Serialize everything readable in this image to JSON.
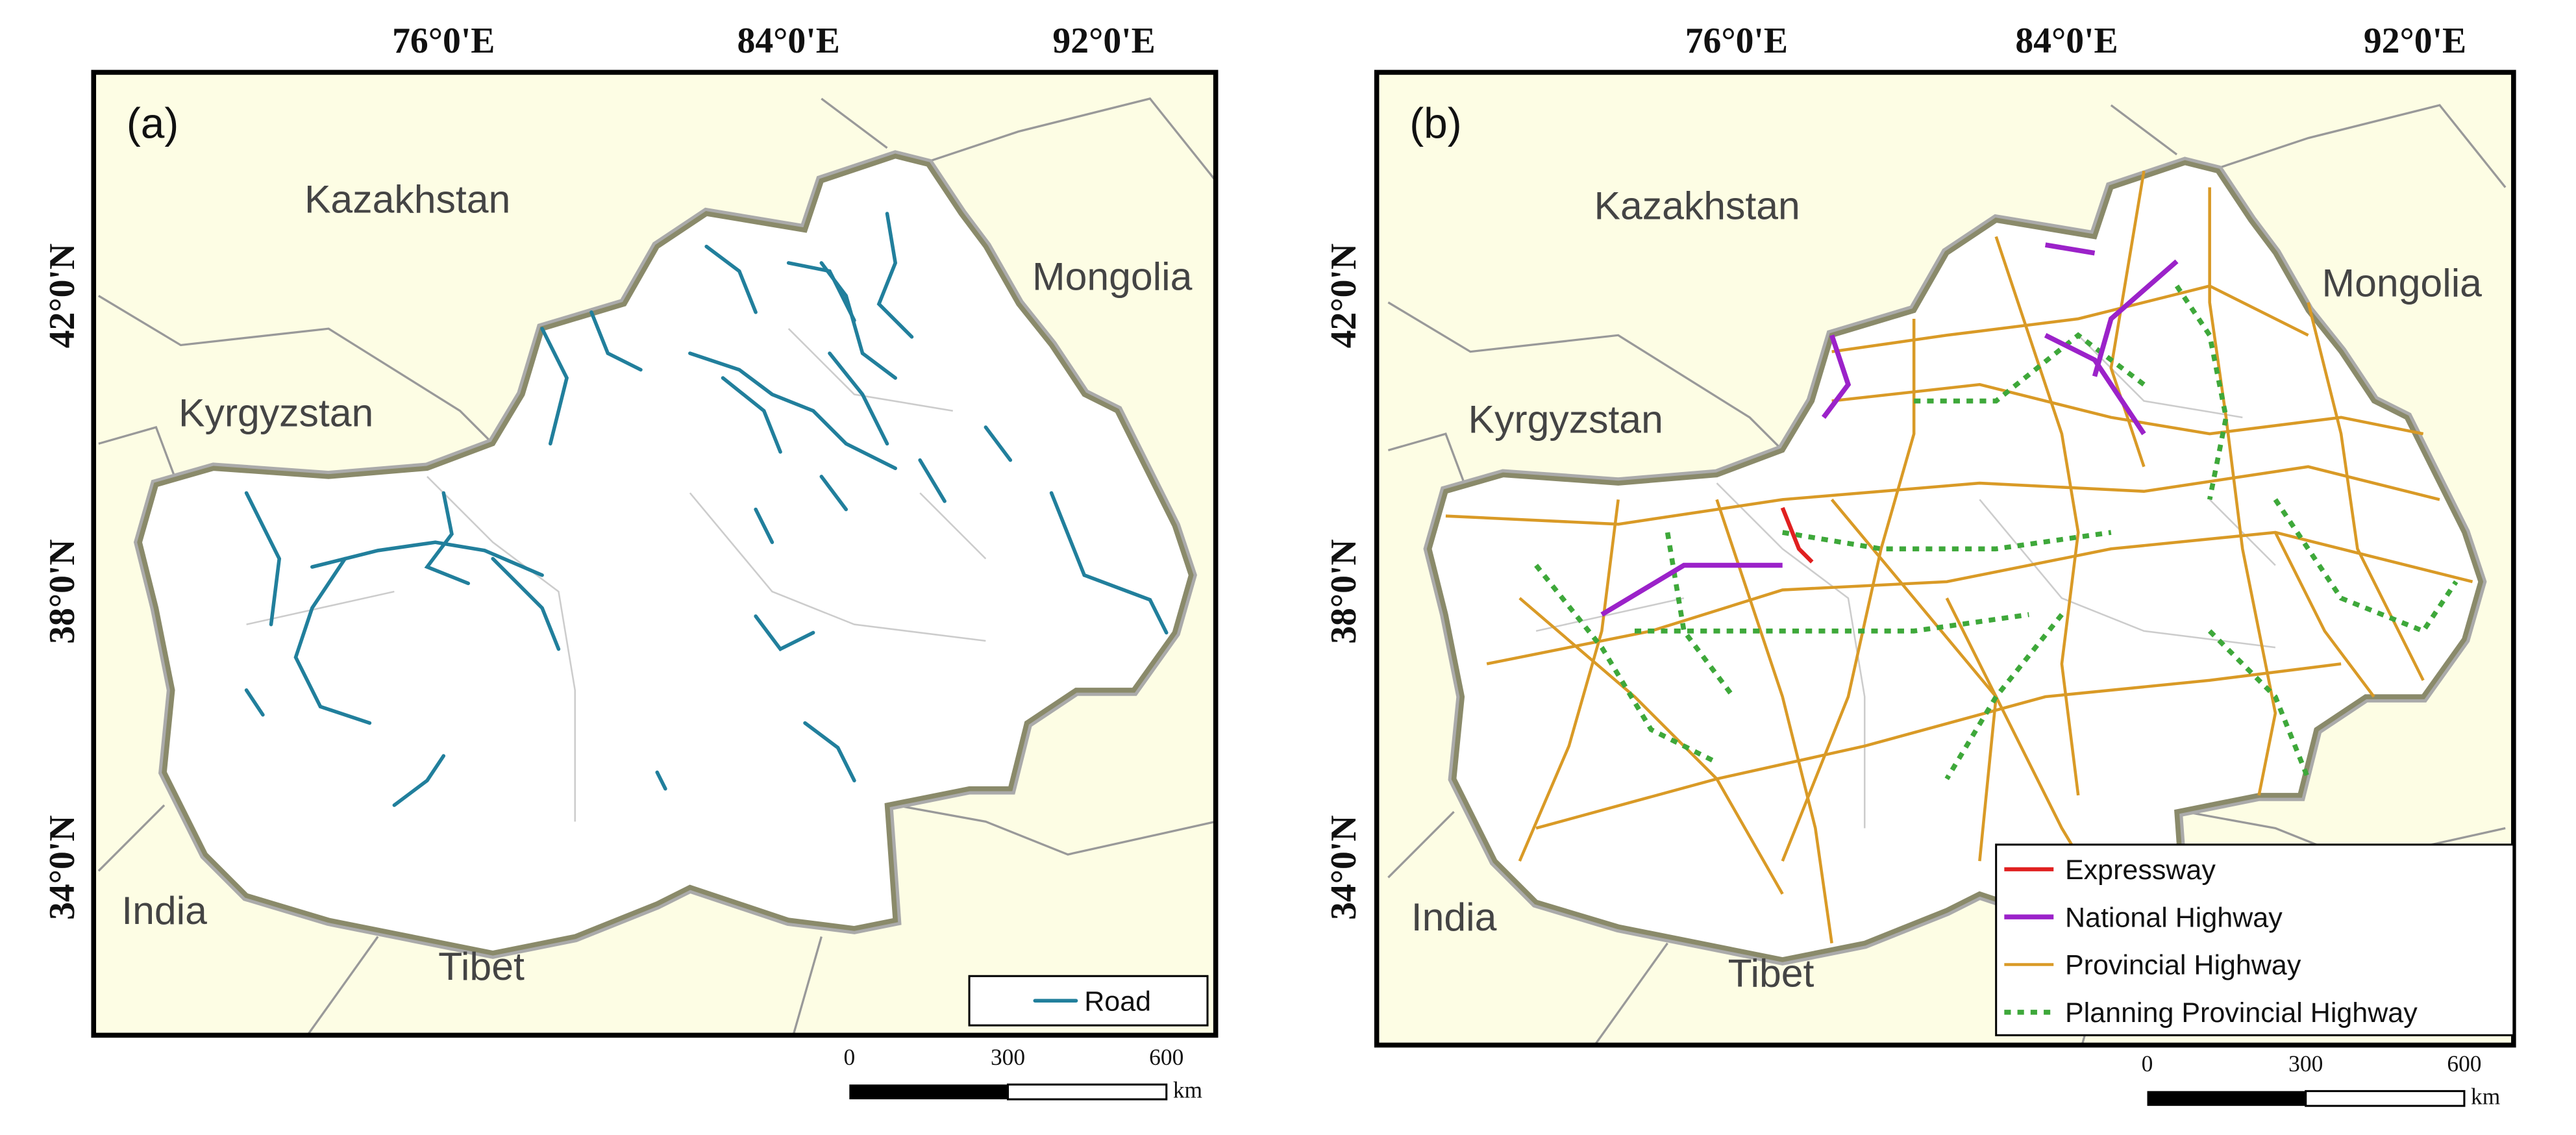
{
  "panels": [
    {
      "label": "(a)",
      "top_ticks": [
        "76°0'E",
        "84°0'E",
        "92°0'E"
      ],
      "left_ticks": [
        "42°0'N",
        "38°0'N",
        "34°0'N"
      ],
      "regions": [
        "Kazakhstan",
        "Mongolia",
        "Kyrgyzstan",
        "India",
        "Tibet"
      ],
      "legend": [
        "Road"
      ],
      "scale": {
        "ticks": [
          "0",
          "300",
          "600"
        ],
        "unit": "km"
      }
    },
    {
      "label": "(b)",
      "top_ticks": [
        "76°0'E",
        "84°0'E",
        "92°0'E"
      ],
      "left_ticks": [
        "42°0'N",
        "38°0'N",
        "34°0'N"
      ],
      "regions": [
        "Kazakhstan",
        "Mongolia",
        "Kyrgyzstan",
        "India",
        "Tibet"
      ],
      "legend": [
        "Expressway",
        "National Highway",
        "Provincial Highway",
        "Planning Provincial Highway"
      ],
      "scale": {
        "ticks": [
          "0",
          "300",
          "600"
        ],
        "unit": "km"
      }
    }
  ]
}
